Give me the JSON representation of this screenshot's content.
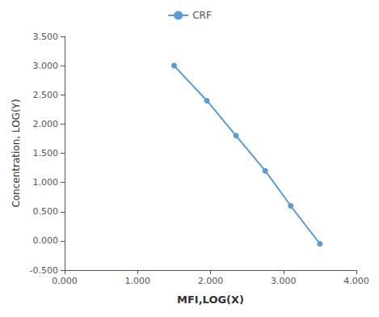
{
  "chart_data": {
    "type": "line",
    "xlabel": "MFI,LOG(X)",
    "ylabel": "Concentration, LOG(Y)",
    "x": [
      1.5,
      1.95,
      2.35,
      2.75,
      3.1,
      3.5
    ],
    "series": [
      {
        "name": "CRF",
        "color": "#5b9bd5",
        "marker": "circle",
        "values": [
          3.0,
          2.4,
          1.8,
          1.2,
          0.6,
          -0.05
        ]
      }
    ],
    "xlim": [
      0.0,
      4.0
    ],
    "ylim": [
      -0.5,
      3.5
    ],
    "xticks": [
      {
        "value": 0.0,
        "label": "0.000"
      },
      {
        "value": 1.0,
        "label": "1.000"
      },
      {
        "value": 2.0,
        "label": "2.000"
      },
      {
        "value": 3.0,
        "label": "3.000"
      },
      {
        "value": 4.0,
        "label": "4.000"
      }
    ],
    "yticks": [
      {
        "value": -0.5,
        "label": "-0.500"
      },
      {
        "value": 0.0,
        "label": "0.000"
      },
      {
        "value": 0.5,
        "label": "0.500"
      },
      {
        "value": 1.0,
        "label": "1.000"
      },
      {
        "value": 1.5,
        "label": "1.500"
      },
      {
        "value": 2.0,
        "label": "2.000"
      },
      {
        "value": 2.5,
        "label": "2.500"
      },
      {
        "value": 3.0,
        "label": "3.000"
      },
      {
        "value": 3.5,
        "label": "3.500"
      }
    ],
    "grid": false,
    "legend": "top"
  }
}
